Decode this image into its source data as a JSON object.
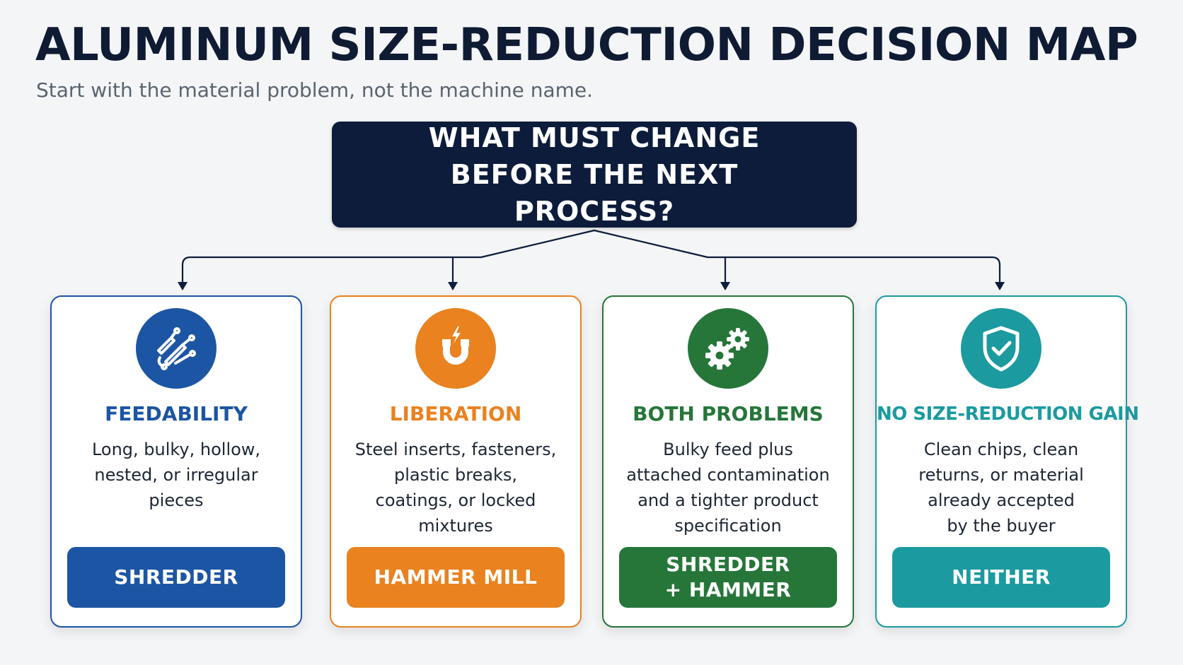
{
  "header": {
    "title": "ALUMINUM SIZE-REDUCTION DECISION MAP",
    "subtitle": "Start with the material problem, not the machine name."
  },
  "question": {
    "text": "WHAT MUST CHANGE BEFORE THE NEXT PROCESS?"
  },
  "colors": {
    "navy": "#0c1c3a",
    "blue": "#1c55a3",
    "orange": "#e9821f",
    "green": "#26763a",
    "teal": "#1b9aa0"
  },
  "cards": [
    {
      "icon": "tangled-cables-icon",
      "title": "FEEDABILITY",
      "description": "Long, bulky, hollow, nested, or irregular pieces",
      "action": "SHREDDER",
      "color": "#1c55a3"
    },
    {
      "icon": "magnet-icon",
      "title": "LIBERATION",
      "description": "Steel inserts, fasteners, plastic breaks, coatings, or locked mixtures",
      "action": "HAMMER MILL",
      "color": "#e9821f"
    },
    {
      "icon": "gears-icon",
      "title": "BOTH PROBLEMS",
      "description": "Bulky feed plus attached contamination and a tighter product specification",
      "action": "SHREDDER + HAMMER",
      "color": "#26763a"
    },
    {
      "icon": "shield-check-icon",
      "title": "NO SIZE-REDUCTION GAIN",
      "description": "Clean chips, clean returns, or material already accepted by the buyer",
      "action": "NEITHER",
      "color": "#1b9aa0"
    }
  ]
}
